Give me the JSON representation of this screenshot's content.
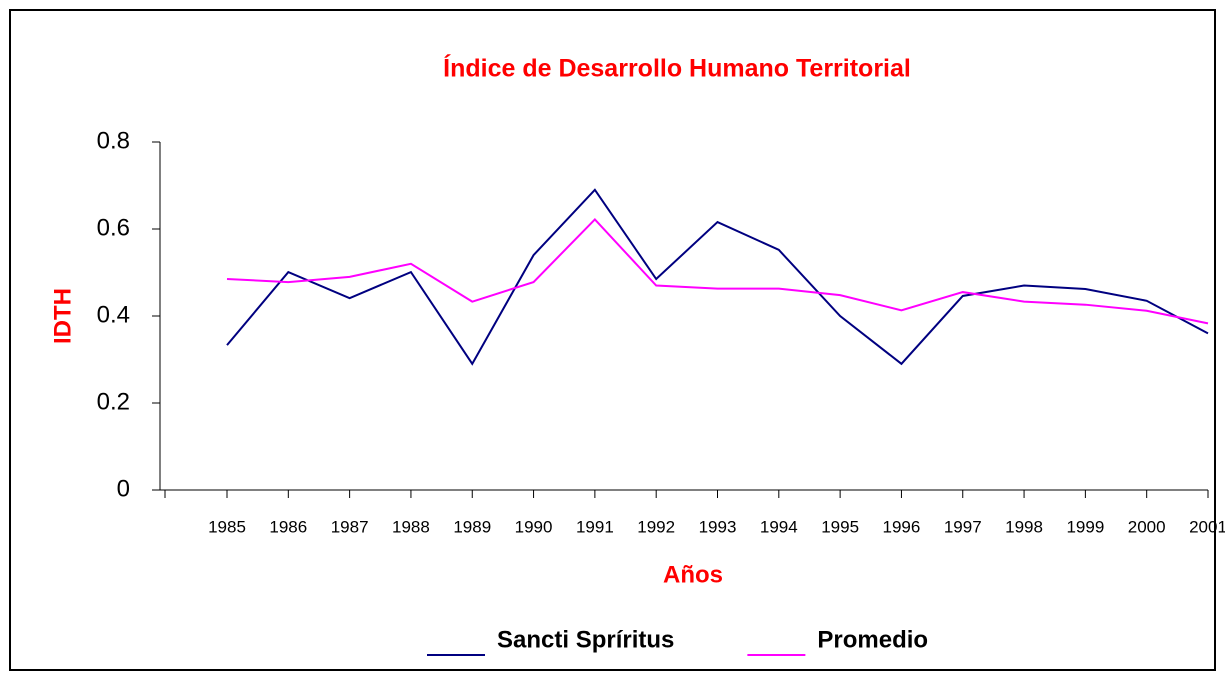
{
  "chart_data": {
    "type": "line",
    "title": "Índice de Desarrollo Humano Territorial",
    "x_label": "Años",
    "y_label": "IDTH",
    "categories": [
      "1985",
      "1986",
      "1987",
      "1988",
      "1989",
      "1990",
      "1991",
      "1992",
      "1993",
      "1994",
      "1995",
      "1996",
      "1997",
      "1998",
      "1999",
      "2000",
      "2001"
    ],
    "series": [
      {
        "name": "Sancti Spríritus",
        "color": "#000080",
        "values": [
          0.333,
          0.501,
          0.441,
          0.501,
          0.29,
          0.54,
          0.69,
          0.485,
          0.616,
          0.552,
          0.4,
          0.29,
          0.446,
          0.47,
          0.462,
          0.435,
          0.36
        ]
      },
      {
        "name": "Promedio",
        "color": "#ff00ff",
        "values": [
          0.485,
          0.478,
          0.49,
          0.52,
          0.433,
          0.478,
          0.622,
          0.47,
          0.463,
          0.463,
          0.448,
          0.413,
          0.455,
          0.433,
          0.426,
          0.412,
          0.383
        ]
      }
    ],
    "ylim": [
      0,
      0.8
    ],
    "yticks": [
      0,
      0.2,
      0.4,
      0.6,
      0.8
    ],
    "grid": false,
    "legend": "bottom"
  }
}
